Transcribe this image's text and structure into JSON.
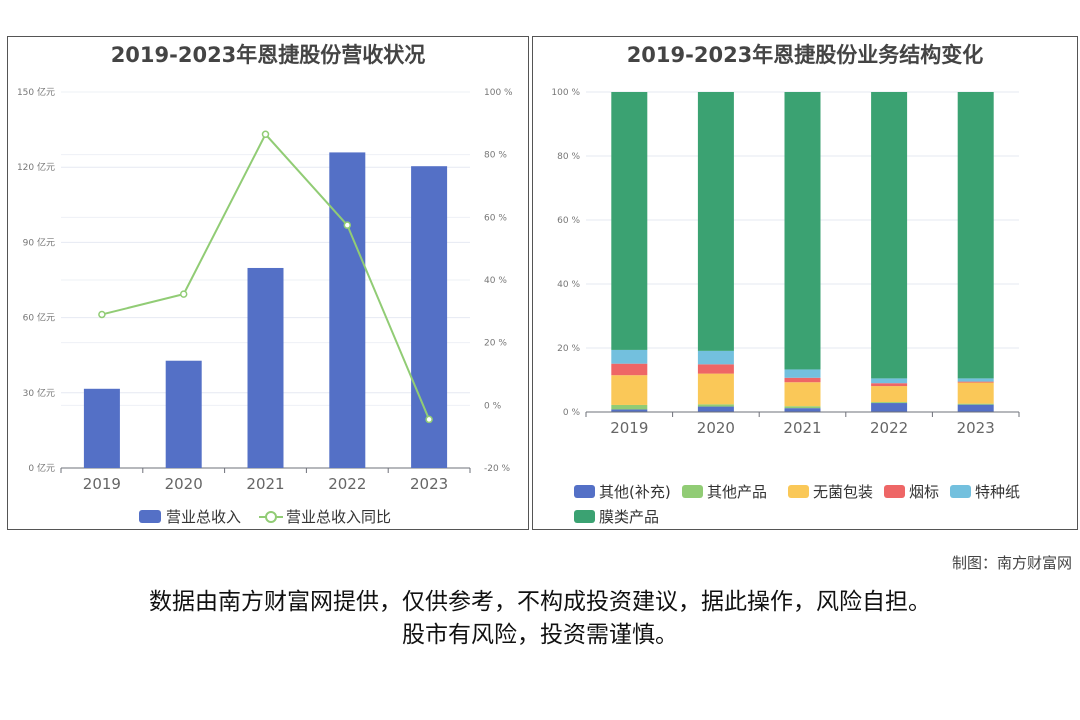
{
  "chart_data": [
    {
      "type": "bar+line",
      "title": "2019-2023年恩捷股份营收状况",
      "categories": [
        "2019",
        "2020",
        "2021",
        "2022",
        "2023"
      ],
      "series": [
        {
          "name": "营业总收入",
          "type": "bar",
          "axis": "left",
          "values": [
            31.6,
            42.8,
            79.8,
            125.9,
            120.4
          ],
          "color": "#5470c6"
        },
        {
          "name": "营业总收入同比",
          "type": "line",
          "axis": "right",
          "values": [
            29,
            35.5,
            86.5,
            57.5,
            -4.5
          ],
          "color": "#91cc75"
        }
      ],
      "yleft": {
        "ticks": [
          0,
          30,
          60,
          90,
          120,
          150
        ],
        "unit": " 亿元",
        "range": [
          0,
          150
        ]
      },
      "yright": {
        "ticks": [
          -20,
          0,
          20,
          40,
          60,
          80,
          100
        ],
        "unit": " %",
        "range": [
          -20,
          100
        ]
      },
      "legend": "bottom",
      "grid": true
    },
    {
      "type": "stacked-bar",
      "title": "2019-2023年恩捷股份业务结构变化",
      "categories": [
        "2019",
        "2020",
        "2021",
        "2022",
        "2023"
      ],
      "series": [
        {
          "name": "其他(补充)",
          "color": "#5470c6",
          "values": [
            0.8,
            1.7,
            1.2,
            2.8,
            2.3
          ]
        },
        {
          "name": "其他产品",
          "color": "#91cc75",
          "values": [
            1.4,
            0.7,
            0.6,
            0.3,
            0.3
          ]
        },
        {
          "name": "无菌包装",
          "color": "#fac858",
          "values": [
            9.3,
            9.6,
            7.5,
            5.0,
            6.6
          ]
        },
        {
          "name": "烟标",
          "color": "#ee6666",
          "values": [
            3.6,
            2.9,
            1.4,
            0.9,
            0.3
          ]
        },
        {
          "name": "特种纸",
          "color": "#73c0de",
          "values": [
            4.3,
            4.2,
            2.6,
            1.5,
            1.0
          ]
        },
        {
          "name": "膜类产品",
          "color": "#3ba272",
          "values": [
            80.6,
            80.9,
            86.7,
            89.5,
            89.5
          ]
        }
      ],
      "y": {
        "ticks": [
          0,
          20,
          40,
          60,
          80,
          100
        ],
        "unit": " %",
        "range": [
          0,
          100
        ]
      },
      "legend": "bottom",
      "grid": true
    }
  ],
  "footer": {
    "credit": "制图：南方财富网",
    "line1": "数据由南方财富网提供，仅供参考，不构成投资建议，据此操作，风险自担。",
    "line2": "股市有风险，投资需谨慎。"
  }
}
